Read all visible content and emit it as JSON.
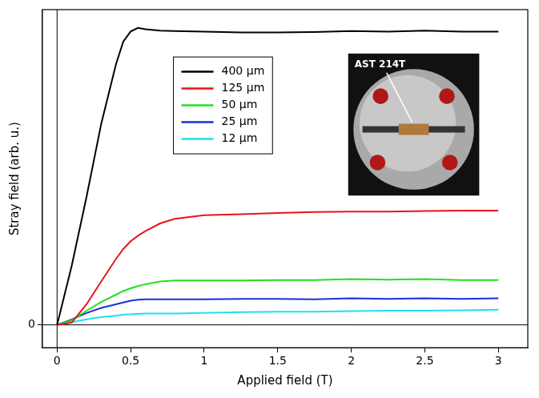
{
  "chart_data": {
    "type": "line",
    "x_label": "Applied field (T)",
    "y_label": "Stray field (arb. u.)",
    "x": [
      0,
      0.1,
      0.2,
      0.3,
      0.4,
      0.45,
      0.5,
      0.55,
      0.6,
      0.7,
      0.8,
      1,
      1.25,
      1.5,
      1.75,
      2,
      2.25,
      2.5,
      2.75,
      3
    ],
    "series": [
      {
        "name": "400 µm",
        "color": "#000000",
        "values": [
          0,
          1.3,
          2.8,
          4.4,
          5.7,
          6.2,
          6.42,
          6.5,
          6.47,
          6.44,
          6.43,
          6.42,
          6.4,
          6.4,
          6.41,
          6.43,
          6.42,
          6.44,
          6.42,
          6.42
        ]
      },
      {
        "name": "125 µm",
        "color": "#e8141c",
        "values": [
          0,
          0.05,
          0.45,
          0.95,
          1.44,
          1.66,
          1.83,
          1.95,
          2.05,
          2.22,
          2.32,
          2.4,
          2.42,
          2.45,
          2.47,
          2.48,
          2.48,
          2.49,
          2.5,
          2.5
        ]
      },
      {
        "name": "50 µm",
        "color": "#22e01c",
        "values": [
          0,
          0.1,
          0.31,
          0.5,
          0.66,
          0.74,
          0.8,
          0.85,
          0.89,
          0.95,
          0.97,
          0.97,
          0.97,
          0.98,
          0.98,
          1.0,
          0.99,
          1.0,
          0.98,
          0.98
        ]
      },
      {
        "name": "25 µm",
        "color": "#1a2fd6",
        "values": [
          0,
          0.12,
          0.26,
          0.37,
          0.45,
          0.49,
          0.53,
          0.55,
          0.56,
          0.56,
          0.56,
          0.56,
          0.57,
          0.57,
          0.56,
          0.58,
          0.57,
          0.58,
          0.57,
          0.58
        ]
      },
      {
        "name": "12 µm",
        "color": "#1fe0f0",
        "values": [
          0,
          0.06,
          0.12,
          0.17,
          0.2,
          0.22,
          0.23,
          0.24,
          0.25,
          0.25,
          0.25,
          0.26,
          0.28,
          0.29,
          0.29,
          0.3,
          0.31,
          0.31,
          0.32,
          0.33
        ]
      }
    ],
    "xlim": [
      -0.1,
      3.2
    ],
    "xticks": [
      0,
      0.5,
      1,
      1.5,
      2,
      2.5,
      3
    ],
    "ylim": [
      -0.5,
      6.9
    ],
    "yticks": [
      0
    ],
    "grid": false,
    "legend": "upper center",
    "annotations": [
      {
        "text": "AST 214T"
      }
    ]
  }
}
